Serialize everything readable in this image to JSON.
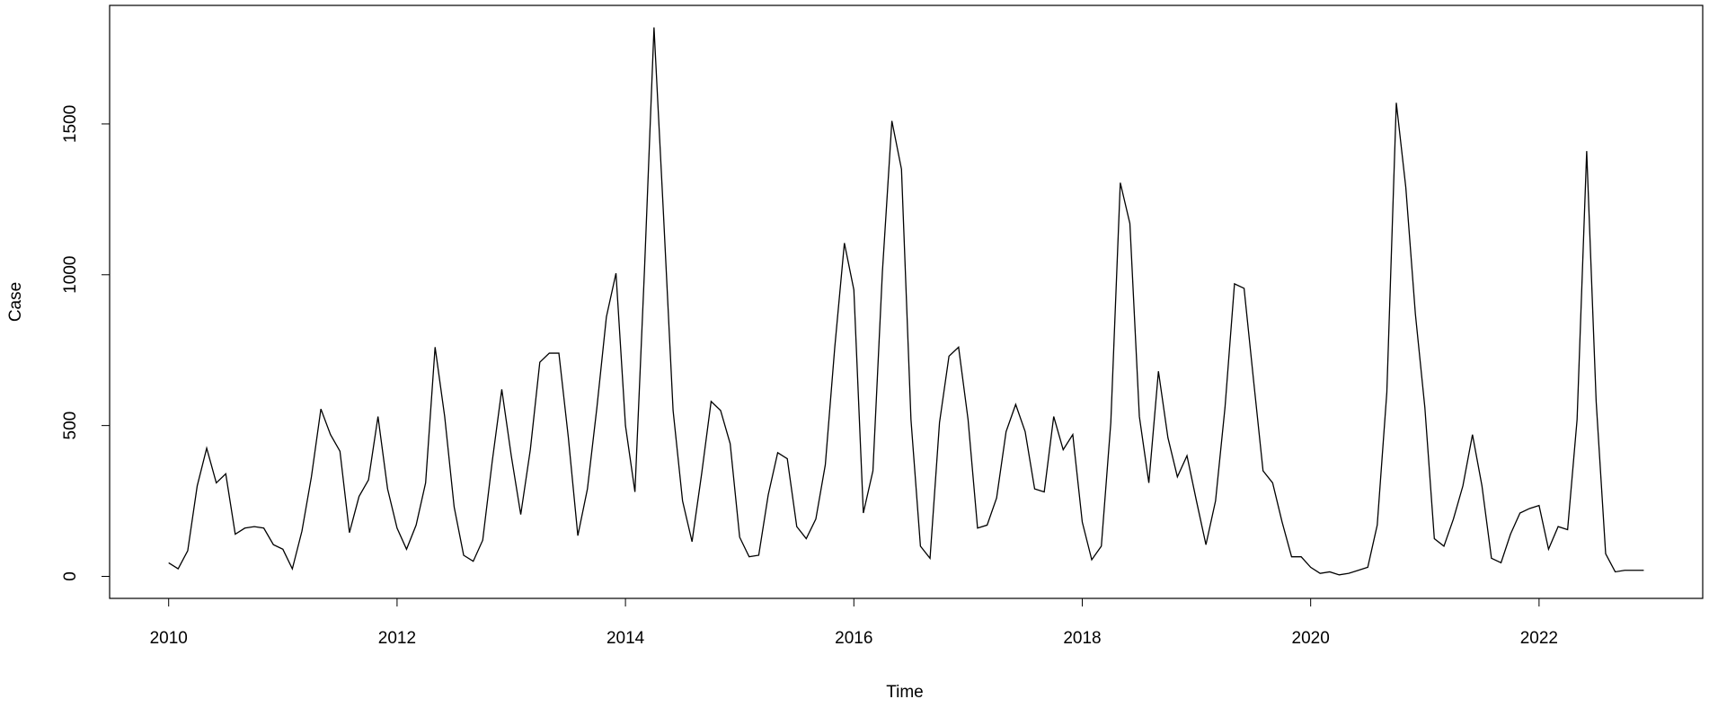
{
  "chart_data": {
    "type": "line",
    "x_label": "Time",
    "y_label": "Case",
    "color": "#000000",
    "x": [
      2010,
      2010.083,
      2010.167,
      2010.25,
      2010.333,
      2010.417,
      2010.5,
      2010.583,
      2010.667,
      2010.75,
      2010.833,
      2010.917,
      2011,
      2011.083,
      2011.167,
      2011.25,
      2011.333,
      2011.417,
      2011.5,
      2011.583,
      2011.667,
      2011.75,
      2011.833,
      2011.917,
      2012,
      2012.083,
      2012.167,
      2012.25,
      2012.333,
      2012.417,
      2012.5,
      2012.583,
      2012.667,
      2012.75,
      2012.833,
      2012.917,
      2013,
      2013.083,
      2013.167,
      2013.25,
      2013.333,
      2013.417,
      2013.5,
      2013.583,
      2013.667,
      2013.75,
      2013.833,
      2013.917,
      2014,
      2014.083,
      2014.167,
      2014.25,
      2014.333,
      2014.417,
      2014.5,
      2014.583,
      2014.667,
      2014.75,
      2014.833,
      2014.917,
      2015,
      2015.083,
      2015.167,
      2015.25,
      2015.333,
      2015.417,
      2015.5,
      2015.583,
      2015.667,
      2015.75,
      2015.833,
      2015.917,
      2016,
      2016.083,
      2016.167,
      2016.25,
      2016.333,
      2016.417,
      2016.5,
      2016.583,
      2016.667,
      2016.75,
      2016.833,
      2016.917,
      2017,
      2017.083,
      2017.167,
      2017.25,
      2017.333,
      2017.417,
      2017.5,
      2017.583,
      2017.667,
      2017.75,
      2017.833,
      2017.917,
      2018,
      2018.083,
      2018.167,
      2018.25,
      2018.333,
      2018.417,
      2018.5,
      2018.583,
      2018.667,
      2018.75,
      2018.833,
      2018.917,
      2019,
      2019.083,
      2019.167,
      2019.25,
      2019.333,
      2019.417,
      2019.5,
      2019.583,
      2019.667,
      2019.75,
      2019.833,
      2019.917,
      2020,
      2020.083,
      2020.167,
      2020.25,
      2020.333,
      2020.417,
      2020.5,
      2020.583,
      2020.667,
      2020.75,
      2020.833,
      2020.917,
      2021,
      2021.083,
      2021.167,
      2021.25,
      2021.333,
      2021.417,
      2021.5,
      2021.583,
      2021.667,
      2021.75,
      2021.833,
      2021.917,
      2022,
      2022.083,
      2022.167,
      2022.25,
      2022.333,
      2022.417,
      2022.5,
      2022.583,
      2022.667,
      2022.75,
      2022.833,
      2022.917
    ],
    "values": [
      45,
      25,
      85,
      300,
      425,
      310,
      340,
      140,
      160,
      165,
      160,
      105,
      90,
      25,
      150,
      330,
      555,
      470,
      415,
      145,
      265,
      320,
      530,
      290,
      160,
      90,
      170,
      310,
      760,
      530,
      230,
      70,
      50,
      120,
      380,
      620,
      400,
      205,
      420,
      710,
      740,
      740,
      460,
      135,
      290,
      560,
      860,
      1005,
      500,
      280,
      1020,
      1820,
      1200,
      550,
      250,
      115,
      340,
      580,
      550,
      440,
      130,
      65,
      70,
      270,
      410,
      390,
      165,
      125,
      190,
      370,
      760,
      1105,
      950,
      210,
      350,
      1010,
      1510,
      1350,
      520,
      100,
      60,
      510,
      730,
      760,
      520,
      160,
      170,
      260,
      480,
      570,
      480,
      290,
      280,
      530,
      420,
      470,
      180,
      55,
      100,
      510,
      1305,
      1170,
      530,
      310,
      680,
      460,
      330,
      400,
      250,
      105,
      250,
      560,
      970,
      955,
      650,
      350,
      310,
      180,
      65,
      65,
      30,
      10,
      15,
      5,
      10,
      20,
      30,
      170,
      610,
      1570,
      1290,
      870,
      560,
      125,
      100,
      190,
      300,
      470,
      300,
      60,
      45,
      140,
      210,
      225,
      235,
      90,
      165,
      155,
      520,
      1410,
      580,
      75,
      15,
      20,
      20,
      20
    ],
    "xlim": [
      2009.483,
      2023.433
    ],
    "ylim": [
      -73,
      1893
    ],
    "xticks": [
      2010,
      2012,
      2014,
      2016,
      2018,
      2020,
      2022
    ],
    "yticks": [
      0,
      500,
      1000,
      1500
    ]
  }
}
